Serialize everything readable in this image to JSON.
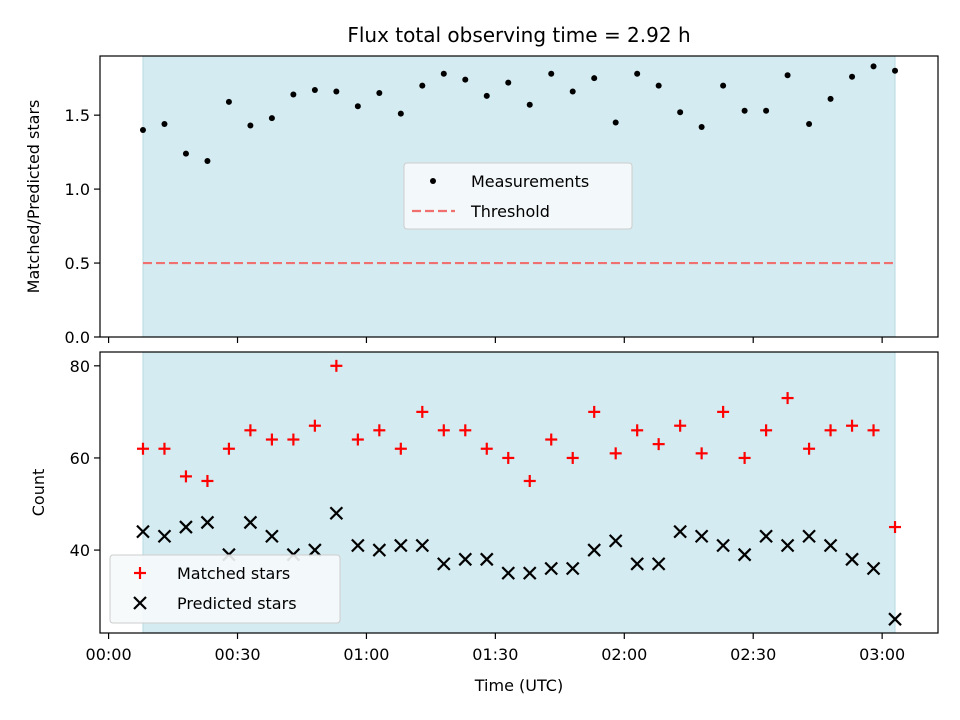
{
  "chart_data": [
    {
      "type": "scatter",
      "title": "Flux total observing time = 2.92 h",
      "xlabel": "",
      "ylabel": "Matched/Predicted stars",
      "ylim": [
        0,
        1.9
      ],
      "yticks": [
        0.0,
        0.5,
        1.0,
        1.5
      ],
      "ytick_labels": [
        "0.0",
        "0.5",
        "1.0",
        "1.5"
      ],
      "shaded_span_minutes": [
        8,
        183
      ],
      "shaded_color": "#d4ebf1",
      "series": [
        {
          "name": "Measurements",
          "marker": "dot",
          "color": "#000000",
          "x_minutes": [
            8,
            13,
            18,
            23,
            28,
            33,
            38,
            43,
            48,
            53,
            58,
            63,
            68,
            73,
            78,
            83,
            88,
            93,
            98,
            103,
            108,
            113,
            118,
            123,
            128,
            133,
            138,
            143,
            148,
            153,
            158,
            163,
            168,
            173,
            178,
            183
          ],
          "y": [
            1.4,
            1.44,
            1.24,
            1.19,
            1.59,
            1.43,
            1.48,
            1.64,
            1.67,
            1.66,
            1.56,
            1.65,
            1.51,
            1.7,
            1.78,
            1.74,
            1.63,
            1.72,
            1.57,
            1.78,
            1.66,
            1.75,
            1.45,
            1.78,
            1.7,
            1.52,
            1.42,
            1.7,
            1.53,
            1.53,
            1.77,
            1.44,
            1.61,
            1.76,
            1.83,
            1.8
          ]
        },
        {
          "name": "Threshold",
          "type": "line",
          "style": "dashed",
          "color": "#f07070",
          "x_minutes": [
            8,
            183
          ],
          "y": [
            0.5,
            0.5
          ]
        }
      ],
      "legend": {
        "placement": "center",
        "entries": [
          "Measurements",
          "Threshold"
        ]
      }
    },
    {
      "type": "scatter",
      "xlabel": "Time (UTC)",
      "ylabel": "Count",
      "ylim": [
        22,
        83
      ],
      "yticks": [
        40,
        60,
        80
      ],
      "ytick_labels": [
        "40",
        "60",
        "80"
      ],
      "xlim_minutes": [
        -2,
        193
      ],
      "xticks_minutes": [
        0,
        30,
        60,
        90,
        120,
        150,
        180
      ],
      "xtick_labels": [
        "00:00",
        "00:30",
        "01:00",
        "01:30",
        "02:00",
        "02:30",
        "03:00"
      ],
      "shaded_span_minutes": [
        8,
        183
      ],
      "shaded_color": "#d4ebf1",
      "series": [
        {
          "name": "Matched stars",
          "marker": "plus",
          "color": "#ff0000",
          "x_minutes": [
            8,
            13,
            18,
            23,
            28,
            33,
            38,
            43,
            48,
            53,
            58,
            63,
            68,
            73,
            78,
            83,
            88,
            93,
            98,
            103,
            108,
            113,
            118,
            123,
            128,
            133,
            138,
            143,
            148,
            153,
            158,
            163,
            168,
            173,
            178,
            183
          ],
          "y": [
            62,
            62,
            56,
            55,
            62,
            66,
            64,
            64,
            67,
            80,
            64,
            66,
            62,
            70,
            66,
            66,
            62,
            60,
            55,
            64,
            60,
            70,
            61,
            66,
            63,
            67,
            61,
            70,
            60,
            66,
            73,
            62,
            66,
            67,
            66,
            45
          ]
        },
        {
          "name": "Predicted stars",
          "marker": "x",
          "color": "#000000",
          "x_minutes": [
            8,
            13,
            18,
            23,
            28,
            33,
            38,
            43,
            48,
            53,
            58,
            63,
            68,
            73,
            78,
            83,
            88,
            93,
            98,
            103,
            108,
            113,
            118,
            123,
            128,
            133,
            138,
            143,
            148,
            153,
            158,
            163,
            168,
            173,
            178,
            183
          ],
          "y": [
            44,
            43,
            45,
            46,
            39,
            46,
            43,
            39,
            40,
            48,
            41,
            40,
            41,
            41,
            37,
            38,
            38,
            35,
            35,
            36,
            36,
            40,
            42,
            37,
            37,
            44,
            43,
            41,
            39,
            43,
            41,
            43,
            41,
            38,
            36,
            25
          ]
        }
      ],
      "legend": {
        "placement": "lower-left",
        "entries": [
          "Matched stars",
          "Predicted stars"
        ]
      }
    }
  ]
}
